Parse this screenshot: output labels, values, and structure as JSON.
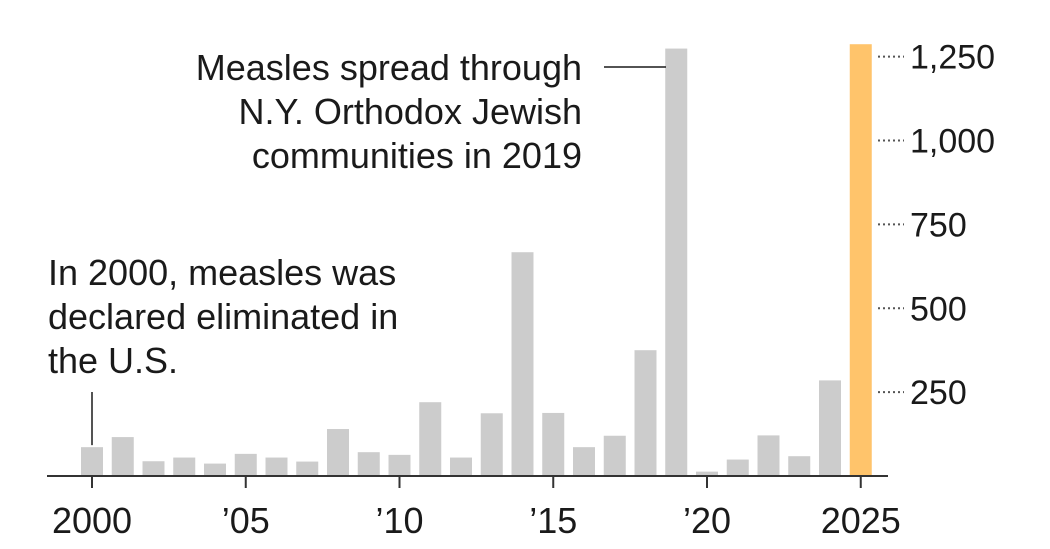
{
  "chart_data": {
    "type": "bar",
    "title": "",
    "xlabel": "",
    "ylabel": "",
    "ylim": [
      0,
      1300
    ],
    "grid": false,
    "x": [
      2000,
      2001,
      2002,
      2003,
      2004,
      2005,
      2006,
      2007,
      2008,
      2009,
      2010,
      2011,
      2012,
      2013,
      2014,
      2015,
      2016,
      2017,
      2018,
      2019,
      2020,
      2021,
      2022,
      2023,
      2024,
      2025
    ],
    "values": [
      86,
      116,
      44,
      55,
      37,
      66,
      55,
      43,
      140,
      71,
      63,
      220,
      55,
      187,
      667,
      188,
      86,
      120,
      375,
      1274,
      13,
      49,
      121,
      59,
      285,
      1287
    ],
    "highlight_index": 25,
    "bar_color": "#cccccc",
    "highlight_color": "#ffc46b",
    "y_ticks": [
      {
        "value": 1250,
        "label": "1,250"
      },
      {
        "value": 1000,
        "label": "1,000"
      },
      {
        "value": 750,
        "label": "750"
      },
      {
        "value": 500,
        "label": "500"
      },
      {
        "value": 250,
        "label": "250"
      }
    ],
    "x_ticks": [
      {
        "year": 2000,
        "label": "2000"
      },
      {
        "year": 2005,
        "label": "’05"
      },
      {
        "year": 2010,
        "label": "’10"
      },
      {
        "year": 2015,
        "label": "’15"
      },
      {
        "year": 2020,
        "label": "’20"
      },
      {
        "year": 2025,
        "label": "2025"
      }
    ],
    "annotations": [
      {
        "year": 2019,
        "lines": [
          "Measles spread through",
          "N.Y. Orthodox Jewish",
          "communities in 2019"
        ]
      },
      {
        "year": 2000,
        "lines": [
          "In 2000, measles was",
          "declared eliminated in",
          "the U.S."
        ]
      }
    ]
  }
}
